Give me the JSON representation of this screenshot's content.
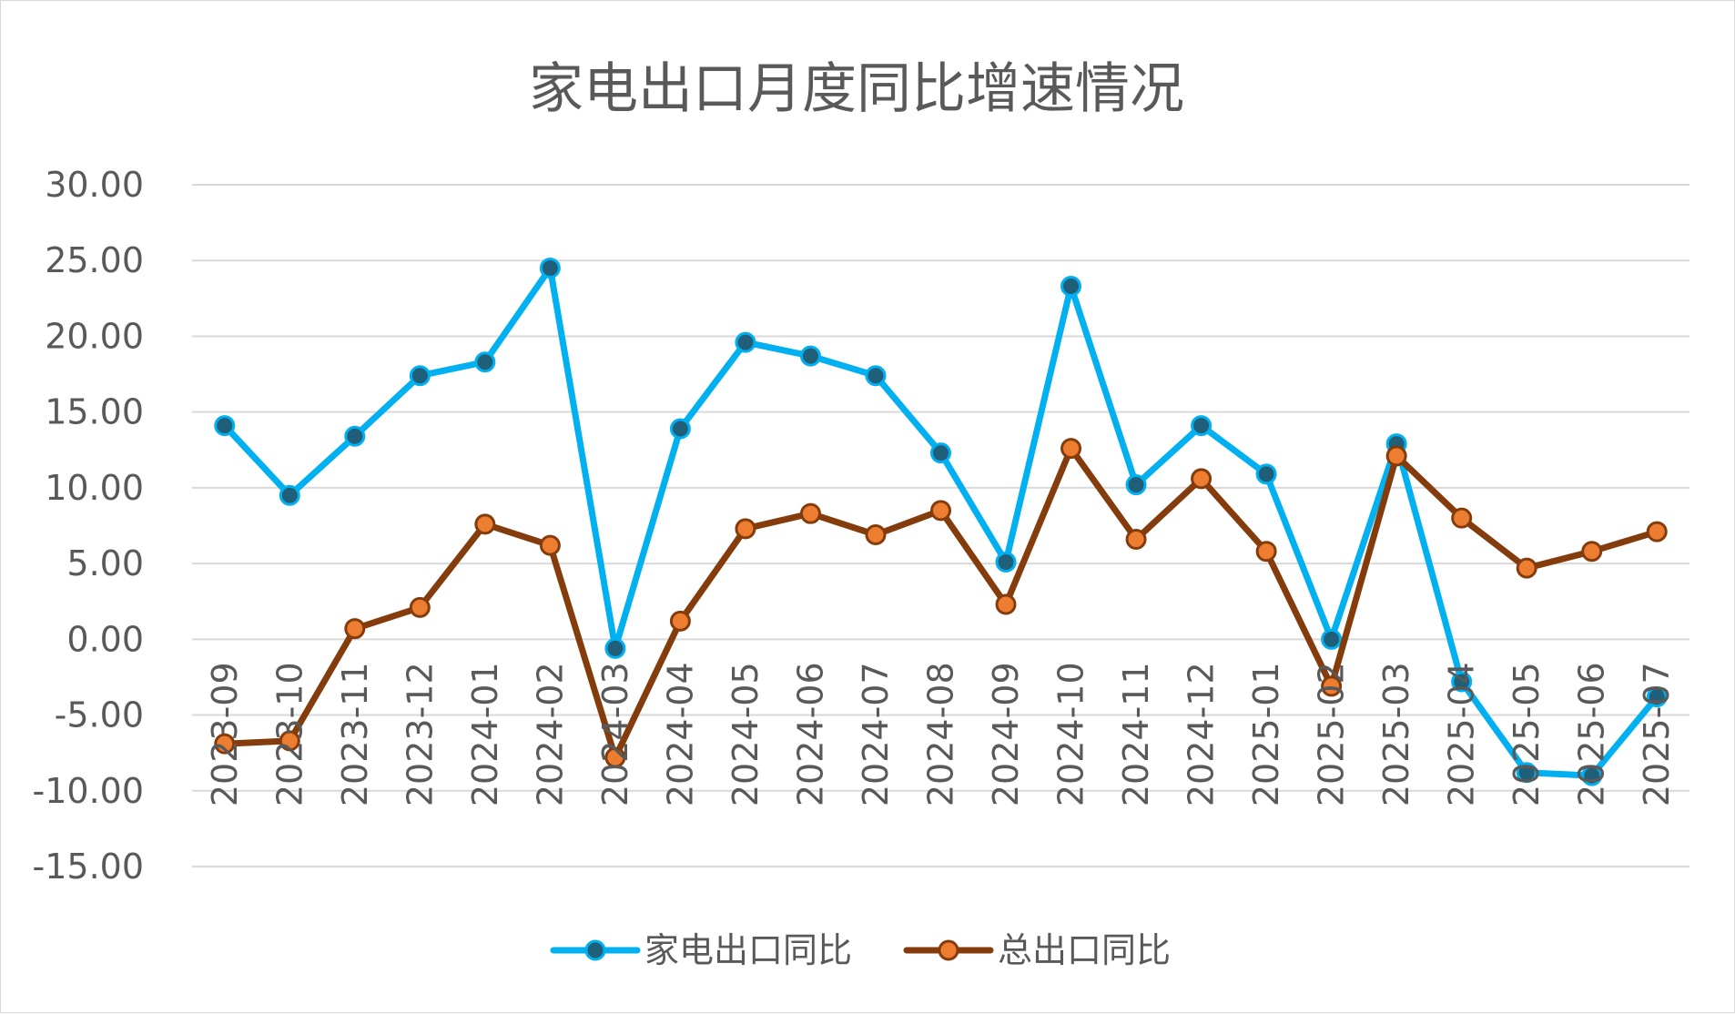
{
  "chart_data": {
    "type": "line",
    "title": "家电出口月度同比增速情况",
    "xlabel": "",
    "ylabel": "",
    "ylim": [
      -15,
      30
    ],
    "y_ticks": [
      "30.00",
      "25.00",
      "20.00",
      "15.00",
      "10.00",
      "5.00",
      "0.00",
      "-5.00",
      "-10.00",
      "-15.00"
    ],
    "categories": [
      "2023-09",
      "2023-10",
      "2023-11",
      "2023-12",
      "2024-01",
      "2024-02",
      "2024-03",
      "2024-04",
      "2024-05",
      "2024-06",
      "2024-07",
      "2024-08",
      "2024-09",
      "2024-10",
      "2024-11",
      "2024-12",
      "2025-01",
      "2025-02",
      "2025-03",
      "2025-04",
      "2025-05",
      "2025-06",
      "2025-07"
    ],
    "grid": true,
    "legend_position": "bottom",
    "series": [
      {
        "name": "家电出口同比",
        "color": "#00b0f0",
        "marker_color": "#1f5f7a",
        "values": [
          14.1,
          9.5,
          13.4,
          17.4,
          18.3,
          24.5,
          -0.6,
          13.9,
          19.6,
          18.7,
          17.4,
          12.3,
          5.1,
          23.3,
          10.2,
          14.1,
          10.9,
          0.0,
          12.9,
          -2.8,
          -8.8,
          -9.0,
          -3.8
        ]
      },
      {
        "name": "总出口同比",
        "color": "#843c0c",
        "marker_color": "#ed7d31",
        "values": [
          -6.9,
          -6.7,
          0.7,
          2.1,
          7.6,
          6.2,
          -7.8,
          1.2,
          7.3,
          8.3,
          6.9,
          8.5,
          2.3,
          12.6,
          6.6,
          10.6,
          5.8,
          -3.1,
          12.1,
          8.0,
          4.7,
          5.8,
          7.1
        ]
      }
    ]
  }
}
